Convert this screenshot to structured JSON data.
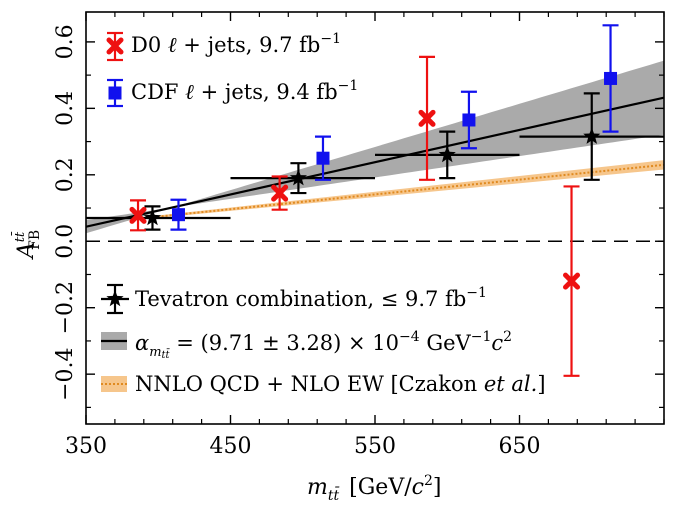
{
  "chart_data": {
    "type": "scatter",
    "xlabel": "m_tt [GeV/c^2]",
    "ylabel": "A_FB^tt",
    "xlim": [
      350,
      750
    ],
    "ylim": [
      -0.55,
      0.69
    ],
    "x_ticks": [
      350,
      450,
      550,
      650
    ],
    "x_tick_labels": [
      "350",
      "450",
      "550",
      "650"
    ],
    "y_ticks": [
      -0.4,
      -0.2,
      0.0,
      0.2,
      0.4,
      0.6
    ],
    "y_tick_labels": [
      "−0.4",
      "−0.2",
      "0.0",
      "0.2",
      "0.4",
      "0.6"
    ],
    "grid": false,
    "zero_line": {
      "y": 0.0,
      "style": "dashed"
    },
    "colors": {
      "d0": "#ee1111",
      "cdf": "#1111ee",
      "tevatron": "#000000",
      "band": "#aaaaaa",
      "nnlo": "#f0a050",
      "nnlo_line": "#e08a20"
    },
    "series": [
      {
        "name": "D0 ℓ + jets, 9.7 fb⁻¹",
        "marker": "x",
        "points": [
          {
            "x": 386,
            "y": 0.078,
            "yerr": 0.045
          },
          {
            "x": 484,
            "y": 0.145,
            "yerr": 0.05
          },
          {
            "x": 586,
            "y": 0.37,
            "yerr": 0.185
          },
          {
            "x": 686,
            "y": -0.12,
            "yerr": 0.285
          }
        ]
      },
      {
        "name": "CDF ℓ + jets, 9.4 fb⁻¹",
        "marker": "square",
        "points": [
          {
            "x": 414,
            "y": 0.08,
            "yerr": 0.045
          },
          {
            "x": 514,
            "y": 0.25,
            "yerr": 0.065
          },
          {
            "x": 615,
            "y": 0.365,
            "yerr": 0.085
          },
          {
            "x": 713,
            "y": 0.49,
            "yerr": 0.16
          }
        ]
      },
      {
        "name": "Tevatron combination, ≤ 9.7 fb⁻¹",
        "marker": "star",
        "points": [
          {
            "x": 396,
            "y": 0.07,
            "yerr": 0.035,
            "xlo": 350,
            "xhi": 450
          },
          {
            "x": 497,
            "y": 0.19,
            "yerr": 0.045,
            "xlo": 450,
            "xhi": 550
          },
          {
            "x": 600,
            "y": 0.26,
            "yerr": 0.07,
            "xlo": 550,
            "xhi": 650
          },
          {
            "x": 700,
            "y": 0.315,
            "yerr": 0.13,
            "xlo": 650,
            "xhi": 750
          }
        ]
      }
    ],
    "fit": {
      "name": "α = (9.71 ± 3.28) × 10⁻⁴ GeV⁻¹c²",
      "slope": 0.000971,
      "slope_err": 0.000328,
      "pivot_x": 410,
      "pivot_y": 0.102
    },
    "theory": {
      "name": "NNLO QCD + NLO EW [Czakon et al.]",
      "line": [
        {
          "x": 350,
          "y": 0.052
        },
        {
          "x": 750,
          "y": 0.23
        }
      ],
      "band_half_width": [
        0.002,
        0.014
      ]
    },
    "legend": {
      "top": [
        {
          "key": "d0",
          "before": "D0 ",
          "math": "ℓ",
          "after": " + jets, 9.7 fb",
          "sup": "−1"
        },
        {
          "key": "cdf",
          "before": "CDF ",
          "math": "ℓ",
          "after": " + jets, 9.4 fb",
          "sup": "−1"
        }
      ],
      "bottom": [
        {
          "key": "tevatron",
          "text": "Tevatron combination, ≤ 9.7 fb",
          "sup": "−1"
        },
        {
          "key": "fit",
          "alpha": "α",
          "sub": "m",
          "subsub": "tt̄",
          "eq": " = (9.71 ± 3.28) × 10",
          "exp": "−4",
          "unit": " GeV",
          "unitexp": "−1",
          "c": "c",
          "cexp": "2"
        },
        {
          "key": "nnlo",
          "text": "NNLO QCD + NLO EW [Czakon ",
          "italic": "et al.",
          "tail": "]"
        }
      ]
    },
    "axis_titles": {
      "x_main": "m",
      "x_sub": "tt̄",
      "x_unit_open": "[GeV/",
      "x_unit_c": "c",
      "x_unit_exp": "2",
      "x_unit_close": "]",
      "y_main": "A",
      "y_sup": "tt̄",
      "y_sub": "FB"
    }
  }
}
